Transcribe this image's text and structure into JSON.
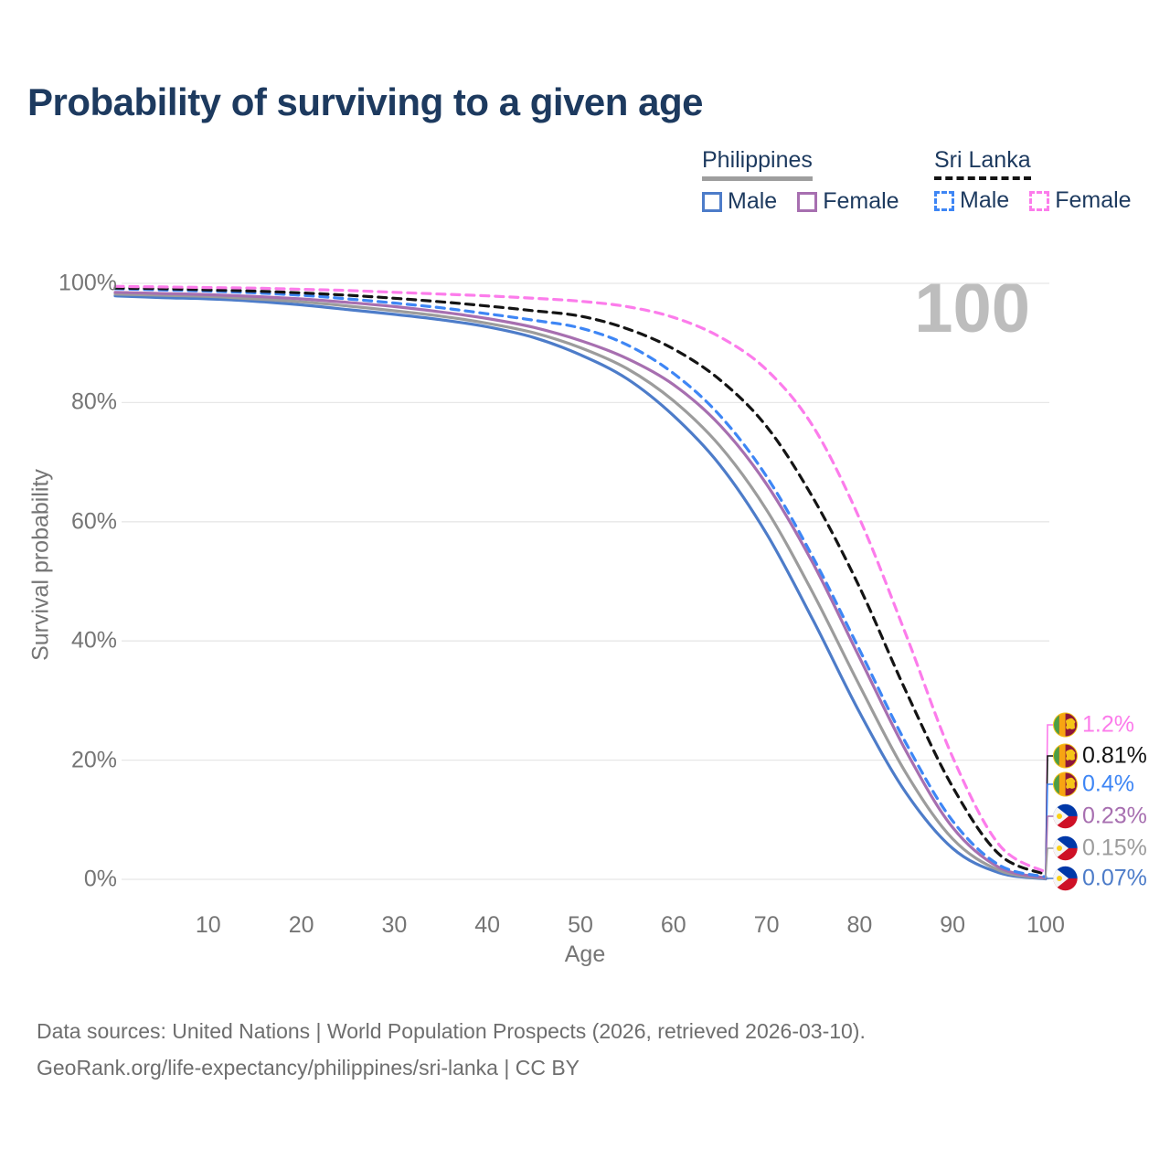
{
  "title": "Probability of surviving to a given age",
  "watermark": "100",
  "legend": {
    "groups": [
      {
        "name": "Philippines",
        "line_style": "solid",
        "underline_color": "#9e9e9e",
        "items": [
          {
            "label": "Male",
            "color": "#4d7cc9"
          },
          {
            "label": "Female",
            "color": "#a76fb0"
          }
        ]
      },
      {
        "name": "Sri Lanka",
        "line_style": "dashed",
        "underline_color": "#141414",
        "items": [
          {
            "label": "Male",
            "color": "#3e86f5"
          },
          {
            "label": "Female",
            "color": "#fc7ceb"
          }
        ]
      }
    ]
  },
  "chart_data": {
    "type": "line",
    "xlabel": "Age",
    "ylabel": "Survival probability",
    "xlim": [
      0,
      100
    ],
    "ylim": [
      0,
      100
    ],
    "grid": "horizontal",
    "x_ticks": [
      10,
      20,
      30,
      40,
      50,
      60,
      70,
      80,
      90,
      100
    ],
    "y_ticks": [
      {
        "value": 0,
        "label": "0%"
      },
      {
        "value": 20,
        "label": "20%"
      },
      {
        "value": 40,
        "label": "40%"
      },
      {
        "value": 60,
        "label": "60%"
      },
      {
        "value": 80,
        "label": "80%"
      },
      {
        "value": 100,
        "label": "100%"
      }
    ],
    "x": [
      0,
      5,
      10,
      15,
      20,
      25,
      30,
      35,
      40,
      45,
      50,
      55,
      60,
      65,
      70,
      75,
      80,
      85,
      90,
      95,
      100
    ],
    "series": [
      {
        "id": "philippines-male",
        "country": "Philippines",
        "sex": "Male",
        "color": "#4d7cc9",
        "dashed": false,
        "flag": "philippines",
        "end_label": "0.07%",
        "values": [
          97.9,
          97.6,
          97.4,
          97.0,
          96.4,
          95.6,
          94.8,
          93.9,
          92.7,
          90.9,
          88.0,
          84.0,
          77.8,
          69.5,
          58.0,
          43.5,
          28.0,
          14.5,
          5.2,
          1.1,
          0.07
        ]
      },
      {
        "id": "philippines-combined",
        "country": "Philippines",
        "sex": "",
        "color": "#9c9c9c",
        "dashed": false,
        "flag": "philippines",
        "end_label": "0.15%",
        "values": [
          98.2,
          98.0,
          97.8,
          97.4,
          96.9,
          96.2,
          95.4,
          94.5,
          93.3,
          91.7,
          89.2,
          85.7,
          80.3,
          72.7,
          62.0,
          48.0,
          32.5,
          17.8,
          6.8,
          1.5,
          0.15
        ]
      },
      {
        "id": "philippines-female",
        "country": "Philippines",
        "sex": "Female",
        "color": "#a76fb0",
        "dashed": false,
        "flag": "philippines",
        "end_label": "0.23%",
        "values": [
          98.5,
          98.3,
          98.1,
          97.8,
          97.4,
          96.8,
          96.1,
          95.2,
          94.1,
          92.6,
          90.4,
          87.4,
          83.0,
          76.2,
          66.3,
          53.0,
          37.2,
          21.5,
          8.7,
          2.0,
          0.23
        ]
      },
      {
        "id": "sri-lanka-male",
        "country": "Sri Lanka",
        "sex": "Male",
        "color": "#3e86f5",
        "dashed": true,
        "flag": "sri-lanka",
        "end_label": "0.4%",
        "values": [
          99.1,
          98.9,
          98.7,
          98.4,
          98.0,
          97.4,
          96.7,
          95.9,
          94.9,
          93.8,
          92.5,
          89.7,
          84.9,
          77.8,
          67.6,
          54.0,
          38.5,
          22.8,
          9.8,
          2.4,
          0.4
        ]
      },
      {
        "id": "sri-lanka-combined",
        "country": "Sri Lanka",
        "sex": "",
        "color": "#141414",
        "dashed": true,
        "flag": "sri-lanka",
        "end_label": "0.81%",
        "values": [
          99.2,
          99.1,
          98.9,
          98.7,
          98.4,
          98.0,
          97.5,
          96.9,
          96.2,
          95.4,
          94.5,
          92.4,
          89.0,
          83.8,
          76.0,
          64.0,
          49.0,
          31.5,
          15.5,
          4.2,
          0.81
        ]
      },
      {
        "id": "sri-lanka-female",
        "country": "Sri Lanka",
        "sex": "Female",
        "color": "#fc7ceb",
        "dashed": true,
        "flag": "sri-lanka",
        "end_label": "1.2%",
        "values": [
          99.5,
          99.4,
          99.3,
          99.2,
          99.0,
          98.8,
          98.5,
          98.2,
          97.9,
          97.5,
          97.0,
          96.1,
          94.3,
          91.0,
          85.5,
          76.0,
          60.5,
          41.0,
          20.5,
          5.8,
          1.2
        ]
      }
    ]
  },
  "footer": {
    "line1": "Data sources: United Nations | World Population Prospects (2026, retrieved 2026-03-10).",
    "line2": "GeoRank.org/life-expectancy/philippines/sri-lanka | CC BY"
  }
}
